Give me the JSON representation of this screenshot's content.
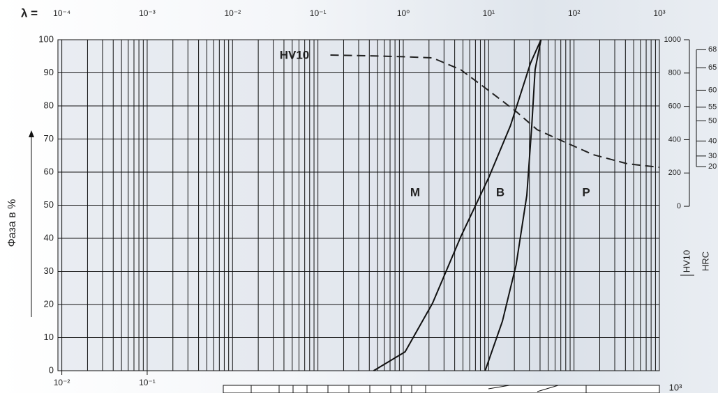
{
  "chart_data": {
    "type": "line",
    "ylabel": "Фаза в %",
    "x_prefix": "λ =",
    "xscale": "log",
    "xlim": [
      9e-05,
      1000
    ],
    "xticks": [
      {
        "value": 0.0001,
        "label": "10⁻⁴"
      },
      {
        "value": 0.001,
        "label": "10⁻³"
      },
      {
        "value": 0.01,
        "label": "10⁻²"
      },
      {
        "value": 0.1,
        "label": "10⁻¹"
      },
      {
        "value": 1,
        "label": "10⁰"
      },
      {
        "value": 10,
        "label": "10¹"
      },
      {
        "value": 100,
        "label": "10²"
      },
      {
        "value": 1000,
        "label": "10³"
      }
    ],
    "minor_grid": true,
    "ylim": [
      0,
      100
    ],
    "yticks": [
      0,
      10,
      20,
      30,
      40,
      50,
      60,
      70,
      80,
      90,
      100
    ],
    "y2label": "HV10",
    "y2lim": [
      -987,
      1000
    ],
    "y2ticks": [
      0,
      200,
      400,
      600,
      800,
      1000
    ],
    "hrc_scale": {
      "label": "HRC",
      "ticks": [
        68,
        65,
        60,
        55,
        50,
        40,
        30,
        20
      ],
      "hv": [
        940,
        832,
        697,
        595,
        513,
        392,
        302,
        238
      ]
    },
    "bottom_axis": {
      "xlim": [
        0.009,
        100000
      ],
      "ticks": [
        {
          "value": 0.01,
          "label": "10⁻²"
        },
        {
          "value": 0.1,
          "label": "10⁻¹"
        }
      ]
    },
    "annotations": [
      "M",
      "B",
      "P",
      "10³"
    ],
    "series": [
      {
        "name": "HV10",
        "axis": "y2",
        "dashed": true,
        "color": "#222222",
        "x": [
          0.14,
          0.5,
          1.0,
          2.2,
          4.7,
          10,
          21,
          37,
          66,
          167,
          425,
          1000
        ],
        "values": [
          908,
          902,
          898,
          891,
          820,
          695,
          569,
          460,
          402,
          310,
          255,
          234
        ]
      },
      {
        "color": "#111111",
        "x": [
          0.45,
          1.05,
          2.2,
          4.7,
          10,
          18,
          31,
          41
        ],
        "values": [
          0,
          5.7,
          20.4,
          40.4,
          58.3,
          74,
          93,
          100
        ]
      },
      {
        "color": "#111111",
        "x": [
          9.1,
          14.5,
          21,
          28,
          32,
          35,
          41
        ],
        "values": [
          0,
          15,
          32,
          53,
          74,
          91,
          100
        ]
      }
    ]
  }
}
